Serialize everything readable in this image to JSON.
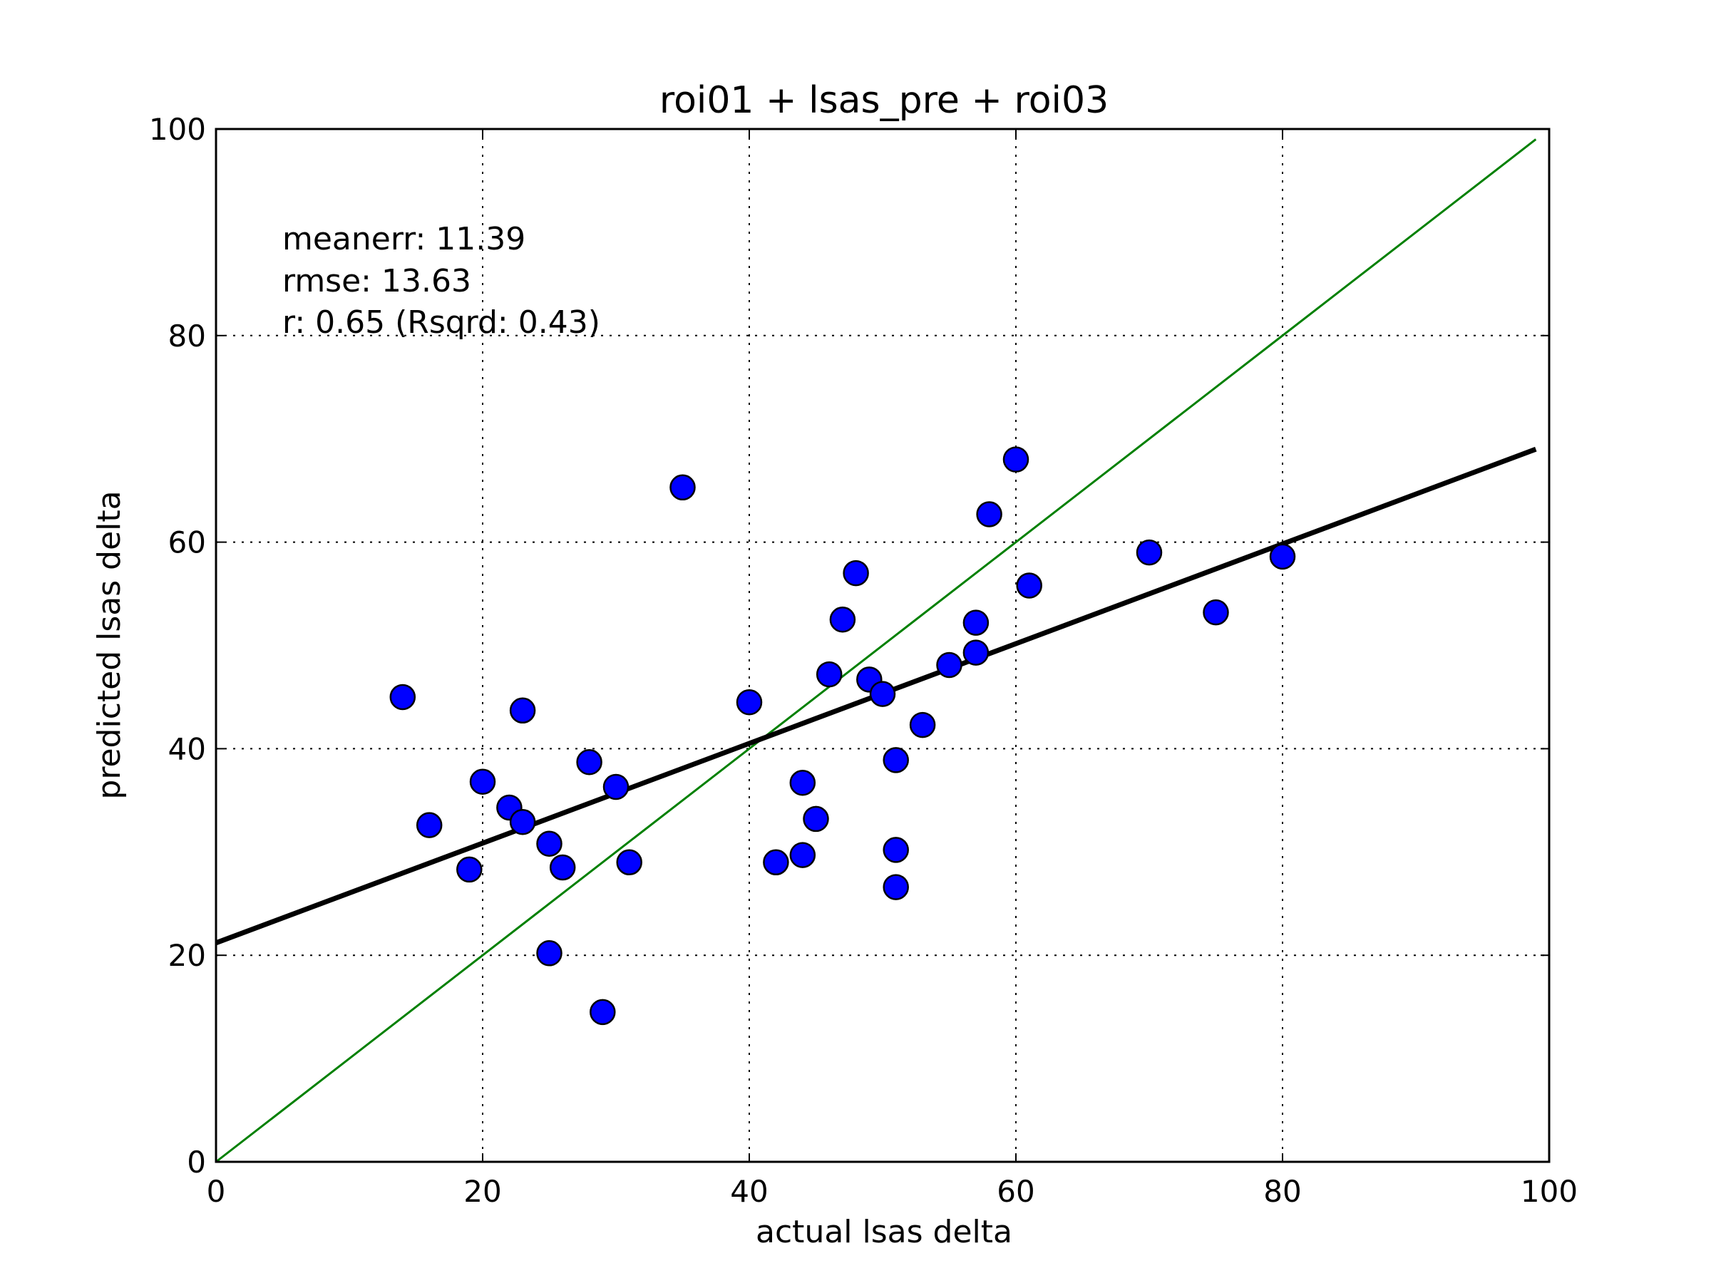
{
  "chart_data": {
    "type": "scatter",
    "title": "roi01 + lsas_pre + roi03",
    "xlabel": "actual lsas delta",
    "ylabel": "predicted lsas delta",
    "xlim": [
      0,
      100
    ],
    "ylim": [
      0,
      100
    ],
    "xticks": [
      "0",
      "20",
      "40",
      "60",
      "80",
      "100"
    ],
    "yticks": [
      "0",
      "20",
      "40",
      "60",
      "80",
      "100"
    ],
    "grid": true,
    "annotations": [
      "meanerr: 11.39",
      "rmse: 13.63",
      "r: 0.65 (Rsqrd: 0.43)"
    ],
    "points": [
      {
        "x": 14,
        "y": 45.0
      },
      {
        "x": 16,
        "y": 32.6
      },
      {
        "x": 19,
        "y": 28.3
      },
      {
        "x": 20,
        "y": 36.8
      },
      {
        "x": 22,
        "y": 34.3
      },
      {
        "x": 23,
        "y": 43.7
      },
      {
        "x": 23,
        "y": 32.9
      },
      {
        "x": 25,
        "y": 30.8
      },
      {
        "x": 25,
        "y": 20.2
      },
      {
        "x": 26,
        "y": 28.5
      },
      {
        "x": 28,
        "y": 38.7
      },
      {
        "x": 29,
        "y": 14.5
      },
      {
        "x": 30,
        "y": 36.3
      },
      {
        "x": 31,
        "y": 29.0
      },
      {
        "x": 35,
        "y": 65.3
      },
      {
        "x": 40,
        "y": 44.5
      },
      {
        "x": 42,
        "y": 29.0
      },
      {
        "x": 44,
        "y": 36.7
      },
      {
        "x": 44,
        "y": 29.7
      },
      {
        "x": 45,
        "y": 33.2
      },
      {
        "x": 46,
        "y": 47.2
      },
      {
        "x": 47,
        "y": 52.5
      },
      {
        "x": 48,
        "y": 57.0
      },
      {
        "x": 49,
        "y": 46.7
      },
      {
        "x": 50,
        "y": 45.3
      },
      {
        "x": 51,
        "y": 38.9
      },
      {
        "x": 51,
        "y": 30.2
      },
      {
        "x": 51,
        "y": 26.6
      },
      {
        "x": 53,
        "y": 42.3
      },
      {
        "x": 55,
        "y": 48.1
      },
      {
        "x": 57,
        "y": 52.2
      },
      {
        "x": 57,
        "y": 49.3
      },
      {
        "x": 58,
        "y": 62.7
      },
      {
        "x": 60,
        "y": 68.0
      },
      {
        "x": 61,
        "y": 55.8
      },
      {
        "x": 70,
        "y": 59.0
      },
      {
        "x": 75,
        "y": 53.2
      },
      {
        "x": 80,
        "y": 58.6
      }
    ],
    "identity_line": {
      "x": [
        0,
        99
      ],
      "y": [
        0,
        99
      ],
      "color": "#008000"
    },
    "fit_line": {
      "x": [
        0,
        99
      ],
      "y": [
        21.2,
        69.0
      ],
      "color": "#000000"
    },
    "marker_color": "#0000ff",
    "marker_edge_color": "#000000"
  }
}
